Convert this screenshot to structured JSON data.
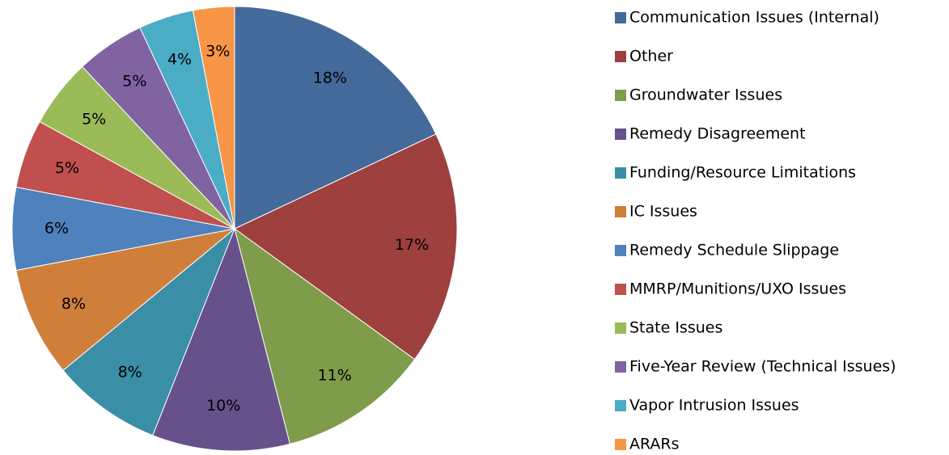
{
  "chart_data": {
    "type": "pie",
    "categories": [
      "Communication Issues (Internal)",
      "Other",
      "Groundwater Issues",
      "Remedy Disagreement",
      "Funding/Resource Limitations",
      "IC Issues",
      "Remedy Schedule Slippage",
      "MMRP/Munitions/UXO Issues",
      "State Issues",
      "Five-Year Review (Technical Issues)",
      "Vapor Intrusion Issues",
      "ARARs"
    ],
    "values": [
      18,
      17,
      11,
      10,
      8,
      8,
      6,
      5,
      5,
      5,
      4,
      3
    ],
    "value_labels": [
      "18%",
      "17%",
      "11%",
      "10%",
      "8%",
      "8%",
      "6%",
      "5%",
      "5%",
      "5%",
      "4%",
      "3%"
    ],
    "colors": [
      "#436a9a",
      "#9e403e",
      "#7f9c4a",
      "#67518b",
      "#3a8ea5",
      "#d07f3b",
      "#4f81bd",
      "#c0504d",
      "#9bbb59",
      "#8064a2",
      "#4bacc6",
      "#f79646"
    ],
    "legend": "right"
  }
}
